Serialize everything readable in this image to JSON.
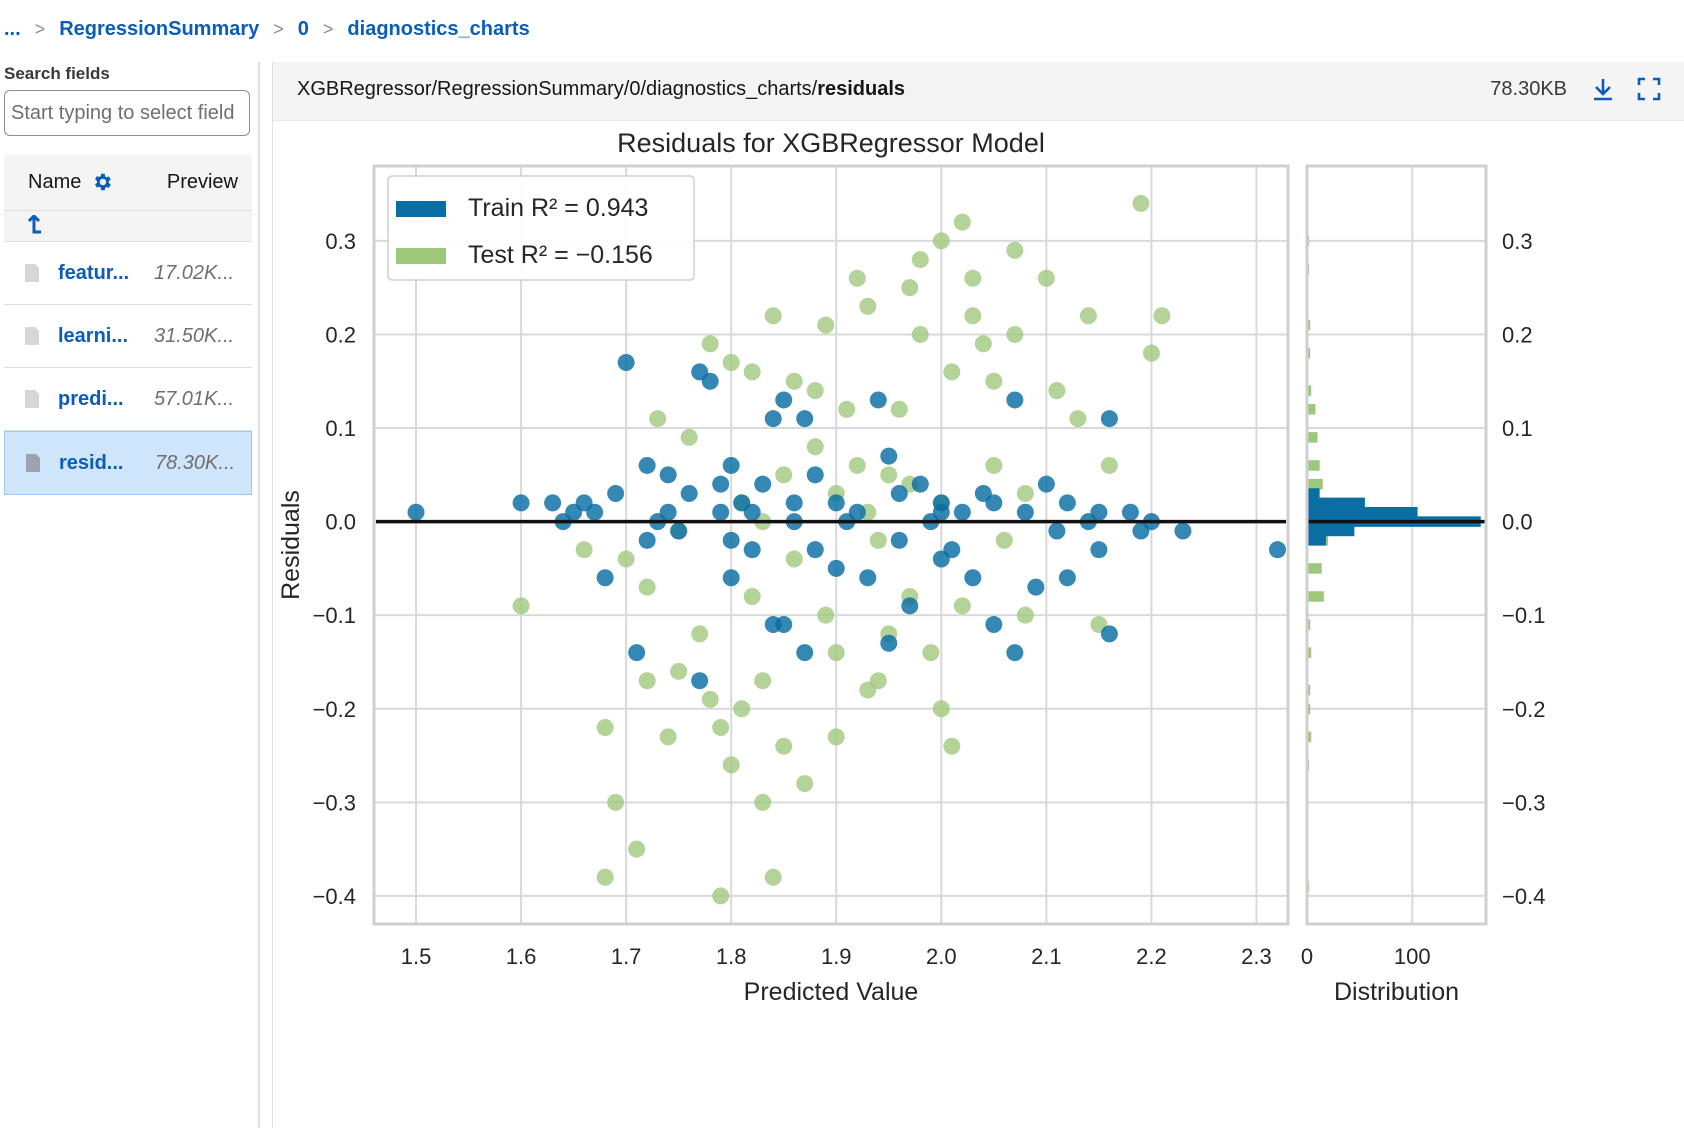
{
  "breadcrumb": {
    "items": [
      "...",
      "RegressionSummary",
      "0",
      "diagnostics_charts"
    ],
    "separator": ">"
  },
  "sidebar": {
    "search_label": "Search fields",
    "search_placeholder": "Start typing to select field",
    "columns": {
      "name": "Name",
      "preview": "Preview"
    },
    "up_icon": "arrow-up-icon",
    "files": [
      {
        "name": "featur...",
        "size": "17.02K...",
        "selected": false
      },
      {
        "name": "learni...",
        "size": "31.50K...",
        "selected": false
      },
      {
        "name": "predi...",
        "size": "57.01K...",
        "selected": false
      },
      {
        "name": "resid...",
        "size": "78.30K...",
        "selected": true
      }
    ]
  },
  "viewer": {
    "path_prefix": "XGBRegressor/RegressionSummary/0/diagnostics_charts/",
    "path_name": "residuals",
    "file_size": "78.30KB",
    "icons": [
      "download-icon",
      "fullscreen-icon"
    ]
  },
  "colors": {
    "train": "#0a6ea4",
    "test": "#9dc77b",
    "link": "#0a5db8"
  },
  "chart_data": {
    "type": "scatter",
    "title": "Residuals for XGBRegressor Model",
    "xlabel": "Predicted Value",
    "ylabel": "Residuals",
    "xlim": [
      1.46,
      2.33
    ],
    "ylim": [
      -0.43,
      0.38
    ],
    "xticks": [
      "1.5",
      "1.6",
      "1.7",
      "1.8",
      "1.9",
      "2.0",
      "2.1",
      "2.2",
      "2.3"
    ],
    "yticks": [
      "0.3",
      "0.2",
      "0.1",
      "0.0",
      "−0.1",
      "−0.2",
      "−0.3",
      "−0.4"
    ],
    "grid": true,
    "legend": "top-left",
    "series": [
      {
        "name": "Train",
        "r2_label": "R² = 0.943",
        "color": "#0a6ea4",
        "points": [
          [
            1.5,
            0.01
          ],
          [
            1.6,
            0.02
          ],
          [
            1.63,
            0.02
          ],
          [
            1.65,
            0.01
          ],
          [
            1.67,
            0.01
          ],
          [
            1.69,
            0.03
          ],
          [
            1.7,
            0.17
          ],
          [
            1.72,
            0.06
          ],
          [
            1.73,
            0.0
          ],
          [
            1.74,
            0.05
          ],
          [
            1.76,
            0.03
          ],
          [
            1.77,
            0.16
          ],
          [
            1.78,
            0.15
          ],
          [
            1.79,
            0.04
          ],
          [
            1.8,
            0.06
          ],
          [
            1.81,
            0.02
          ],
          [
            1.82,
            0.01
          ],
          [
            1.83,
            0.04
          ],
          [
            1.84,
            0.11
          ],
          [
            1.85,
            0.13
          ],
          [
            1.86,
            0.02
          ],
          [
            1.87,
            0.11
          ],
          [
            1.88,
            0.05
          ],
          [
            1.9,
            0.02
          ],
          [
            1.92,
            0.01
          ],
          [
            1.94,
            0.13
          ],
          [
            1.95,
            0.07
          ],
          [
            1.96,
            0.03
          ],
          [
            1.98,
            0.04
          ],
          [
            2.0,
            0.02
          ],
          [
            2.02,
            0.01
          ],
          [
            2.04,
            0.03
          ],
          [
            2.05,
            0.02
          ],
          [
            2.07,
            0.13
          ],
          [
            2.08,
            0.01
          ],
          [
            2.1,
            0.04
          ],
          [
            2.12,
            0.02
          ],
          [
            2.15,
            0.01
          ],
          [
            2.16,
            0.11
          ],
          [
            2.18,
            0.01
          ],
          [
            2.2,
            0.0
          ],
          [
            2.23,
            -0.01
          ],
          [
            2.32,
            -0.03
          ],
          [
            1.68,
            -0.06
          ],
          [
            1.72,
            -0.02
          ],
          [
            1.75,
            -0.01
          ],
          [
            1.8,
            -0.02
          ],
          [
            1.8,
            -0.06
          ],
          [
            1.82,
            -0.03
          ],
          [
            1.85,
            -0.11
          ],
          [
            1.87,
            -0.14
          ],
          [
            1.88,
            -0.03
          ],
          [
            1.9,
            -0.05
          ],
          [
            1.93,
            -0.06
          ],
          [
            1.95,
            -0.13
          ],
          [
            1.97,
            -0.09
          ],
          [
            2.0,
            -0.04
          ],
          [
            2.03,
            -0.06
          ],
          [
            2.05,
            -0.11
          ],
          [
            2.07,
            -0.14
          ],
          [
            2.09,
            -0.07
          ],
          [
            2.12,
            -0.06
          ],
          [
            2.15,
            -0.03
          ],
          [
            2.16,
            -0.12
          ],
          [
            1.71,
            -0.14
          ],
          [
            1.77,
            -0.17
          ],
          [
            1.84,
            -0.11
          ],
          [
            2.0,
            0.01
          ],
          [
            1.91,
            0.0
          ],
          [
            1.96,
            -0.02
          ],
          [
            1.99,
            0.0
          ],
          [
            2.01,
            -0.03
          ],
          [
            1.86,
            0.0
          ],
          [
            1.79,
            0.01
          ],
          [
            1.74,
            0.01
          ],
          [
            2.11,
            -0.01
          ],
          [
            2.14,
            0.0
          ],
          [
            2.19,
            -0.01
          ],
          [
            1.64,
            0.0
          ],
          [
            1.66,
            0.02
          ]
        ]
      },
      {
        "name": "Test",
        "r2_label": "R² = −0.156",
        "color": "#9dc77b",
        "points": [
          [
            1.6,
            -0.09
          ],
          [
            1.66,
            -0.03
          ],
          [
            1.68,
            -0.22
          ],
          [
            1.68,
            -0.38
          ],
          [
            1.69,
            -0.3
          ],
          [
            1.7,
            -0.04
          ],
          [
            1.71,
            -0.35
          ],
          [
            1.72,
            -0.07
          ],
          [
            1.72,
            -0.17
          ],
          [
            1.73,
            0.11
          ],
          [
            1.74,
            -0.23
          ],
          [
            1.75,
            -0.16
          ],
          [
            1.76,
            0.09
          ],
          [
            1.77,
            -0.12
          ],
          [
            1.78,
            -0.19
          ],
          [
            1.79,
            -0.22
          ],
          [
            1.79,
            -0.4
          ],
          [
            1.8,
            0.17
          ],
          [
            1.8,
            -0.26
          ],
          [
            1.81,
            -0.2
          ],
          [
            1.82,
            0.16
          ],
          [
            1.83,
            -0.17
          ],
          [
            1.83,
            -0.3
          ],
          [
            1.84,
            0.22
          ],
          [
            1.84,
            -0.38
          ],
          [
            1.85,
            -0.24
          ],
          [
            1.86,
            0.15
          ],
          [
            1.87,
            -0.28
          ],
          [
            1.88,
            0.14
          ],
          [
            1.89,
            0.21
          ],
          [
            1.9,
            -0.14
          ],
          [
            1.9,
            -0.23
          ],
          [
            1.91,
            0.12
          ],
          [
            1.92,
            0.26
          ],
          [
            1.93,
            0.23
          ],
          [
            1.93,
            -0.18
          ],
          [
            1.94,
            -0.17
          ],
          [
            1.95,
            -0.12
          ],
          [
            1.96,
            0.12
          ],
          [
            1.97,
            0.25
          ],
          [
            1.98,
            0.2
          ],
          [
            1.98,
            0.28
          ],
          [
            1.99,
            -0.14
          ],
          [
            2.0,
            0.3
          ],
          [
            2.0,
            -0.2
          ],
          [
            2.01,
            -0.24
          ],
          [
            2.01,
            0.16
          ],
          [
            2.02,
            0.32
          ],
          [
            2.03,
            0.26
          ],
          [
            2.03,
            0.22
          ],
          [
            2.04,
            0.19
          ],
          [
            2.05,
            0.15
          ],
          [
            2.07,
            0.2
          ],
          [
            2.07,
            0.29
          ],
          [
            2.08,
            -0.1
          ],
          [
            2.1,
            0.26
          ],
          [
            2.11,
            0.14
          ],
          [
            2.13,
            0.11
          ],
          [
            2.14,
            0.22
          ],
          [
            2.15,
            -0.11
          ],
          [
            2.16,
            0.06
          ],
          [
            2.19,
            0.34
          ],
          [
            2.2,
            0.18
          ],
          [
            2.21,
            0.22
          ],
          [
            1.78,
            0.19
          ],
          [
            1.85,
            0.05
          ],
          [
            1.88,
            0.08
          ],
          [
            1.92,
            0.06
          ],
          [
            1.95,
            0.05
          ],
          [
            1.97,
            0.04
          ],
          [
            2.05,
            0.06
          ],
          [
            2.08,
            0.03
          ],
          [
            1.82,
            -0.08
          ],
          [
            1.89,
            -0.1
          ],
          [
            1.97,
            -0.08
          ],
          [
            2.02,
            -0.09
          ],
          [
            1.75,
            -0.01
          ],
          [
            1.86,
            -0.04
          ],
          [
            1.94,
            -0.02
          ],
          [
            2.06,
            -0.02
          ],
          [
            1.81,
            0.02
          ],
          [
            1.9,
            0.03
          ],
          [
            2.0,
            0.02
          ],
          [
            1.83,
            0.0
          ],
          [
            1.93,
            0.01
          ]
        ]
      }
    ],
    "distribution": {
      "xlabel": "Distribution",
      "xticks": [
        "0",
        "100"
      ],
      "train_bins": [
        [
          0.03,
          12
        ],
        [
          0.02,
          55
        ],
        [
          0.01,
          105
        ],
        [
          0.0,
          165
        ],
        [
          -0.01,
          45
        ],
        [
          -0.02,
          18
        ]
      ],
      "test_bins": [
        [
          0.3,
          2
        ],
        [
          0.27,
          2
        ],
        [
          0.21,
          3
        ],
        [
          0.18,
          3
        ],
        [
          0.14,
          4
        ],
        [
          0.12,
          8
        ],
        [
          0.09,
          10
        ],
        [
          0.06,
          12
        ],
        [
          0.04,
          15
        ],
        [
          0.02,
          22
        ],
        [
          -0.02,
          20
        ],
        [
          -0.05,
          14
        ],
        [
          -0.08,
          16
        ],
        [
          -0.11,
          3
        ],
        [
          -0.14,
          4
        ],
        [
          -0.18,
          3
        ],
        [
          -0.2,
          3
        ],
        [
          -0.23,
          4
        ],
        [
          -0.26,
          2
        ],
        [
          -0.39,
          2
        ]
      ]
    }
  }
}
